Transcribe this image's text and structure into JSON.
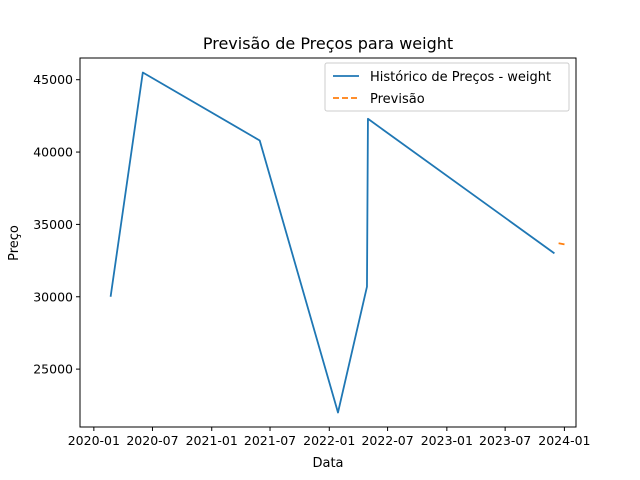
{
  "chart_data": {
    "type": "line",
    "title": "Previsão de Preços para weight",
    "xlabel": "Data",
    "ylabel": "Preço",
    "x_tick_labels": [
      "2020-01",
      "2020-07",
      "2021-01",
      "2021-07",
      "2022-01",
      "2022-07",
      "2023-01",
      "2023-07",
      "2024-01"
    ],
    "y_tick_labels": [
      "25000",
      "30000",
      "35000",
      "40000",
      "45000"
    ],
    "y_ticks": [
      25000,
      30000,
      35000,
      40000,
      45000
    ],
    "xlim": [
      "2019-11-19",
      "2024-02-06"
    ],
    "ylim": [
      21000,
      46500
    ],
    "grid": false,
    "legend_position": "top-right",
    "series": [
      {
        "name": "Histórico de Preços - weight",
        "color": "#1f77b4",
        "style": "solid",
        "x": [
          "2020-02-22",
          "2020-06-01",
          "2021-05-30",
          "2022-01-28",
          "2022-04-28",
          "2022-05-01",
          "2023-12-01"
        ],
        "y": [
          30000,
          45500,
          40800,
          22000,
          30700,
          42300,
          33000
        ]
      },
      {
        "name": "Previsão",
        "color": "#ff7f0e",
        "style": "dashed",
        "x": [
          "2023-12-14",
          "2024-01-05"
        ],
        "y": [
          33700,
          33600
        ]
      }
    ]
  }
}
